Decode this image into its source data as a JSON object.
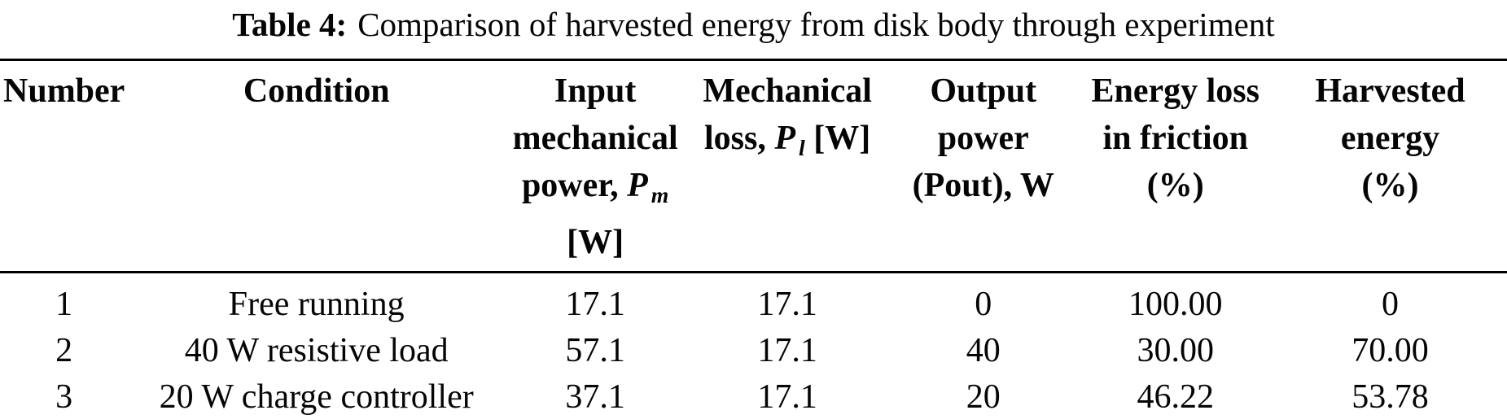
{
  "caption": {
    "label": "Table 4:",
    "text": "Comparison of harvested energy from disk body through experiment"
  },
  "table": {
    "columns": [
      {
        "name": "number",
        "header_lines": [
          [
            {
              "t": "Number"
            }
          ]
        ]
      },
      {
        "name": "condition",
        "header_lines": [
          [
            {
              "t": "Condition"
            }
          ]
        ]
      },
      {
        "name": "input-mechanical-power",
        "header_lines": [
          [
            {
              "t": "Input"
            }
          ],
          [
            {
              "t": "mechanical"
            }
          ],
          [
            {
              "t": "power, "
            },
            {
              "t": "P",
              "s": "it"
            },
            {
              "t": "m",
              "s": "itsub"
            }
          ],
          [
            {
              "t": "[W]"
            }
          ]
        ]
      },
      {
        "name": "mechanical-loss",
        "header_lines": [
          [
            {
              "t": "Mechanical"
            }
          ],
          [
            {
              "t": "loss, "
            },
            {
              "t": "P",
              "s": "it"
            },
            {
              "t": "l",
              "s": "itsub"
            },
            {
              "t": " [W]"
            }
          ]
        ]
      },
      {
        "name": "output-power",
        "header_lines": [
          [
            {
              "t": "Output"
            }
          ],
          [
            {
              "t": "power"
            }
          ],
          [
            {
              "t": "(Pout), W"
            }
          ]
        ]
      },
      {
        "name": "energy-loss-in-friction",
        "header_lines": [
          [
            {
              "t": "Energy loss"
            }
          ],
          [
            {
              "t": "in friction"
            }
          ],
          [
            {
              "t": "(%)"
            }
          ]
        ]
      },
      {
        "name": "harvested-energy",
        "header_lines": [
          [
            {
              "t": "Harvested"
            }
          ],
          [
            {
              "t": "energy"
            }
          ],
          [
            {
              "t": "(%)"
            }
          ]
        ]
      }
    ],
    "rows": [
      [
        "1",
        "Free running",
        "17.1",
        "17.1",
        "0",
        "100.00",
        "0"
      ],
      [
        "2",
        "40 W resistive load",
        "57.1",
        "17.1",
        "40",
        "30.00",
        "70.00"
      ],
      [
        "3",
        "20 W charge controller",
        "37.1",
        "17.1",
        "20",
        "46.22",
        "53.78"
      ]
    ]
  },
  "colors": {
    "text": "#050505",
    "rule": "#000000",
    "background": "#ffffff"
  }
}
